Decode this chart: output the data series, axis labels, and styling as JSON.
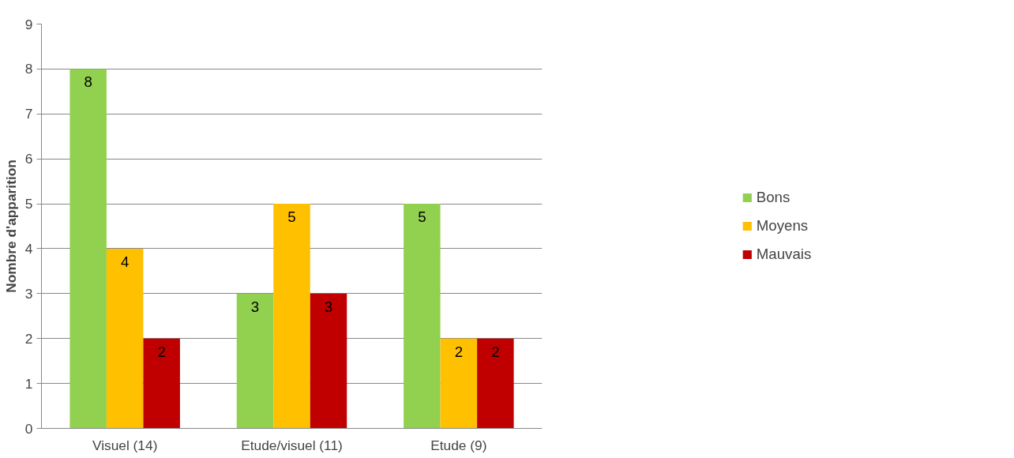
{
  "chart_data": {
    "type": "bar",
    "ylabel": "Nombre d'apparition",
    "categories": [
      "Visuel (14)",
      "Etude/visuel (11)",
      "Etude (9)"
    ],
    "series": [
      {
        "name": "Bons",
        "color": "#92d050",
        "values": [
          8,
          3,
          5
        ]
      },
      {
        "name": "Moyens",
        "color": "#ffc000",
        "values": [
          4,
          5,
          2
        ]
      },
      {
        "name": "Mauvais",
        "color": "#c00000",
        "values": [
          2,
          3,
          2
        ]
      }
    ],
    "ylim": [
      0,
      9
    ],
    "yticks": [
      0,
      1,
      2,
      3,
      4,
      5,
      6,
      7,
      8,
      9
    ],
    "grid": "y",
    "legend": "right",
    "data_labels": true
  }
}
